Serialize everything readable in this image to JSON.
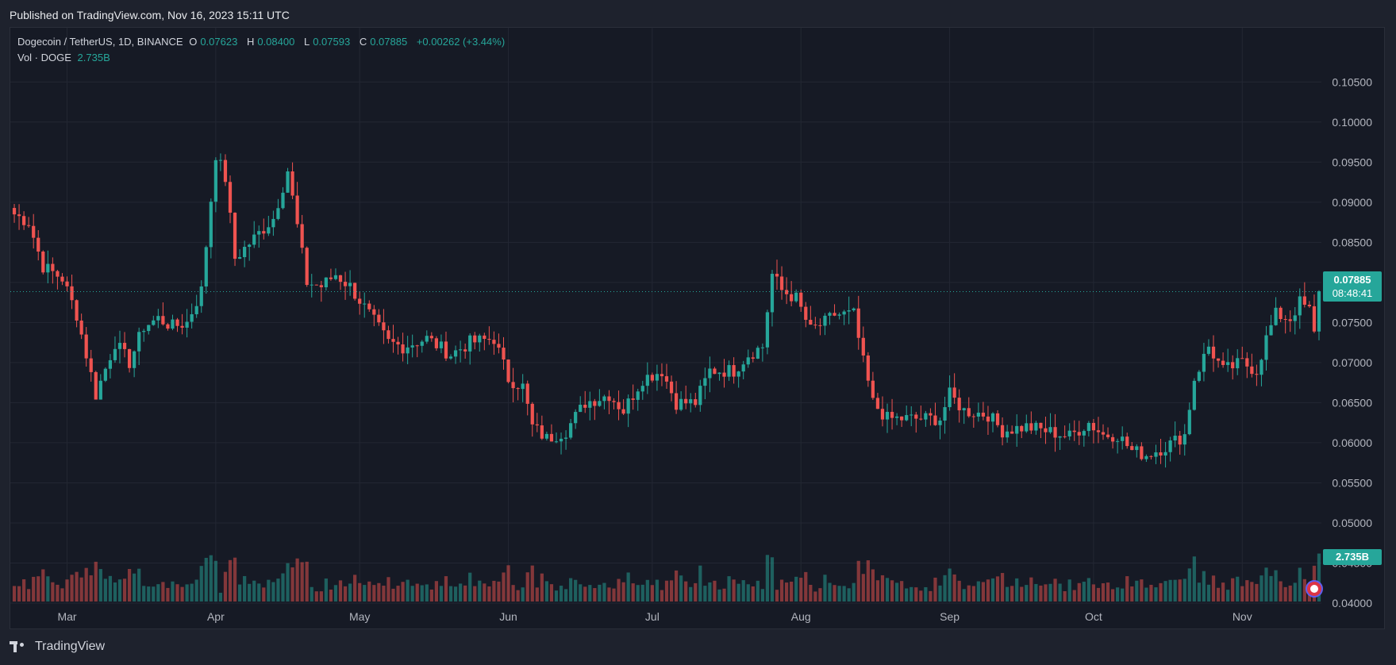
{
  "header": {
    "published": "Published on TradingView.com, Nov 16, 2023 15:11 UTC"
  },
  "legend": {
    "symbol": "Dogecoin / TetherUS, 1D, BINANCE",
    "o_label": "O",
    "o_value": "0.07623",
    "h_label": "H",
    "h_value": "0.08400",
    "l_label": "L",
    "l_value": "0.07593",
    "c_label": "C",
    "c_value": "0.07885",
    "change": "+0.00262 (+3.44%)",
    "vol_label": "Vol · DOGE",
    "vol_value": "2.735B"
  },
  "price_tag": {
    "price": "0.07885",
    "countdown": "08:48:41"
  },
  "vol_tag": {
    "value": "2.735B"
  },
  "footer": {
    "brand": "TradingView"
  },
  "colors": {
    "up": "#26a69a",
    "down": "#ef5350",
    "background": "#161a25",
    "grid": "#232733"
  },
  "chart_data": {
    "type": "candlestick",
    "y_ticks": [
      "0.10500",
      "0.10000",
      "0.09500",
      "0.09000",
      "0.08500",
      "0.08000",
      "0.07500",
      "0.07000",
      "0.06500",
      "0.06000",
      "0.05500",
      "0.05000",
      "0.04500",
      "0.04000"
    ],
    "ylim": [
      0.04,
      0.1075
    ],
    "x_months": [
      {
        "label": "Mar",
        "day": 11
      },
      {
        "label": "Apr",
        "day": 42
      },
      {
        "label": "May",
        "day": 72
      },
      {
        "label": "Jun",
        "day": 103
      },
      {
        "label": "Jul",
        "day": 133
      },
      {
        "label": "Aug",
        "day": 164
      },
      {
        "label": "Sep",
        "day": 195
      },
      {
        "label": "Oct",
        "day": 225
      },
      {
        "label": "Nov",
        "day": 256
      }
    ],
    "last_price": 0.07885,
    "anchors": [
      [
        0,
        0.0885
      ],
      [
        3,
        0.0875
      ],
      [
        6,
        0.082
      ],
      [
        10,
        0.0805
      ],
      [
        13,
        0.076
      ],
      [
        17,
        0.066
      ],
      [
        21,
        0.0725
      ],
      [
        24,
        0.07
      ],
      [
        27,
        0.0745
      ],
      [
        30,
        0.0755
      ],
      [
        33,
        0.0745
      ],
      [
        36,
        0.075
      ],
      [
        39,
        0.079
      ],
      [
        42,
        0.096
      ],
      [
        44,
        0.093
      ],
      [
        46,
        0.083
      ],
      [
        50,
        0.0855
      ],
      [
        54,
        0.088
      ],
      [
        57,
        0.094
      ],
      [
        59,
        0.087
      ],
      [
        61,
        0.08
      ],
      [
        64,
        0.0795
      ],
      [
        67,
        0.081
      ],
      [
        70,
        0.0795
      ],
      [
        74,
        0.076
      ],
      [
        78,
        0.0725
      ],
      [
        81,
        0.072
      ],
      [
        86,
        0.073
      ],
      [
        91,
        0.071
      ],
      [
        95,
        0.0725
      ],
      [
        100,
        0.073
      ],
      [
        103,
        0.068
      ],
      [
        106,
        0.067
      ],
      [
        108,
        0.062
      ],
      [
        111,
        0.0605
      ],
      [
        115,
        0.0615
      ],
      [
        119,
        0.065
      ],
      [
        124,
        0.066
      ],
      [
        127,
        0.064
      ],
      [
        131,
        0.068
      ],
      [
        135,
        0.069
      ],
      [
        138,
        0.065
      ],
      [
        142,
        0.065
      ],
      [
        145,
        0.069
      ],
      [
        150,
        0.069
      ],
      [
        153,
        0.071
      ],
      [
        156,
        0.072
      ],
      [
        158,
        0.081
      ],
      [
        160,
        0.079
      ],
      [
        163,
        0.078
      ],
      [
        166,
        0.074
      ],
      [
        169,
        0.075
      ],
      [
        171,
        0.076
      ],
      [
        173,
        0.076
      ],
      [
        175,
        0.076
      ],
      [
        177,
        0.07
      ],
      [
        179,
        0.065
      ],
      [
        182,
        0.063
      ],
      [
        186,
        0.063
      ],
      [
        190,
        0.063
      ],
      [
        193,
        0.063
      ],
      [
        195,
        0.066
      ],
      [
        198,
        0.064
      ],
      [
        203,
        0.0635
      ],
      [
        206,
        0.0615
      ],
      [
        211,
        0.062
      ],
      [
        215,
        0.0615
      ],
      [
        220,
        0.0608
      ],
      [
        224,
        0.0625
      ],
      [
        227,
        0.061
      ],
      [
        230,
        0.061
      ],
      [
        233,
        0.059
      ],
      [
        236,
        0.0585
      ],
      [
        240,
        0.0595
      ],
      [
        244,
        0.061
      ],
      [
        246,
        0.068
      ],
      [
        249,
        0.072
      ],
      [
        252,
        0.069
      ],
      [
        256,
        0.07
      ],
      [
        259,
        0.069
      ],
      [
        261,
        0.073
      ],
      [
        263,
        0.076
      ],
      [
        266,
        0.0755
      ],
      [
        268,
        0.0775
      ],
      [
        270,
        0.0765
      ],
      [
        271,
        0.0735
      ],
      [
        272,
        0.0789
      ]
    ],
    "volume_label": "2.735B"
  }
}
